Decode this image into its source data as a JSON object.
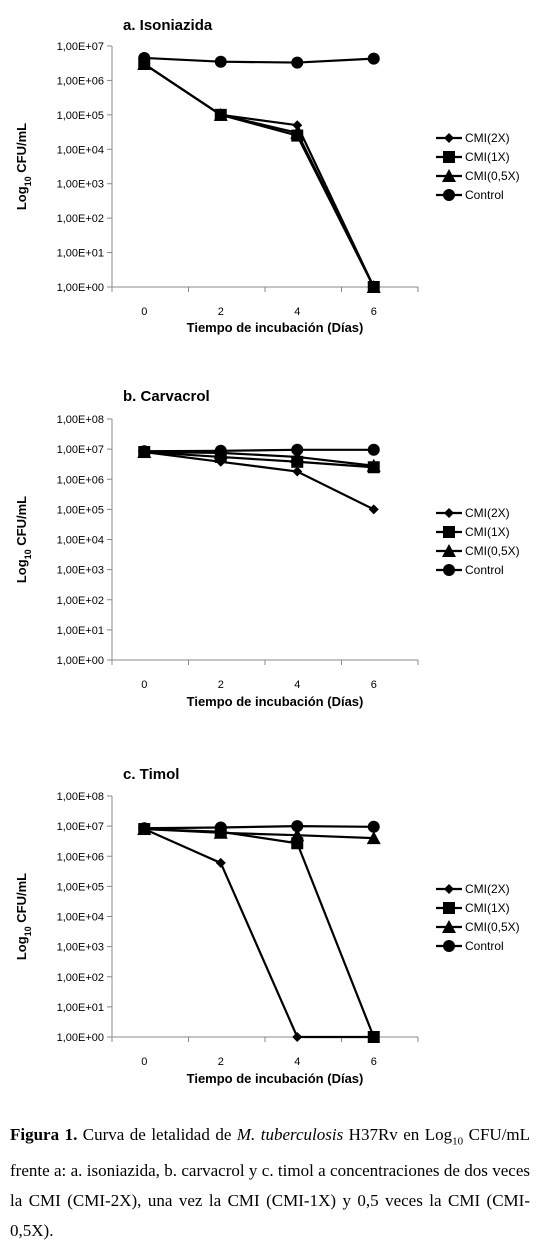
{
  "chart_data": [
    {
      "type": "line",
      "title": "a. Isoniazida",
      "xlabel": "Tiempo de incubación (Días)",
      "ylabel": "Log10 CFU/mL",
      "yscale": "log",
      "ylim": [
        1,
        10000000
      ],
      "yticks": [
        "1,00E+00",
        "1,00E+01",
        "1,00E+02",
        "1,00E+03",
        "1,00E+04",
        "1,00E+05",
        "1,00E+06",
        "1,00E+07"
      ],
      "x": [
        0,
        2,
        4,
        6
      ],
      "legend_position": "right",
      "series": [
        {
          "name": "CMI(2X)",
          "marker": "diamond",
          "values": [
            3000000,
            100000,
            50000,
            1
          ]
        },
        {
          "name": "CMI(1X)",
          "marker": "square",
          "values": [
            3000000,
            100000,
            25000,
            1
          ]
        },
        {
          "name": "CMI(0,5X)",
          "marker": "triangle",
          "values": [
            3000000,
            100000,
            30000,
            1
          ]
        },
        {
          "name": "Control",
          "marker": "circle",
          "values": [
            4500000,
            3500000,
            3300000,
            4300000
          ]
        }
      ]
    },
    {
      "type": "line",
      "title": "b. Carvacrol",
      "xlabel": "Tiempo de incubación (Días)",
      "ylabel": "Log10 CFU/mL",
      "yscale": "log",
      "ylim": [
        1,
        100000000
      ],
      "yticks": [
        "1,00E+00",
        "1,00E+01",
        "1,00E+02",
        "1,00E+03",
        "1,00E+04",
        "1,00E+05",
        "1,00E+06",
        "1,00E+07",
        "1,00E+08"
      ],
      "x": [
        0,
        2,
        4,
        6
      ],
      "legend_position": "right",
      "series": [
        {
          "name": "CMI(2X)",
          "marker": "diamond",
          "values": [
            8000000,
            3800000,
            1800000,
            100000
          ]
        },
        {
          "name": "CMI(1X)",
          "marker": "square",
          "values": [
            8000000,
            5500000,
            3800000,
            2500000
          ]
        },
        {
          "name": "CMI(0,5X)",
          "marker": "triangle",
          "values": [
            8000000,
            7500000,
            5500000,
            2800000
          ]
        },
        {
          "name": "Control",
          "marker": "circle",
          "values": [
            8500000,
            8800000,
            9500000,
            9500000
          ]
        }
      ]
    },
    {
      "type": "line",
      "title": "c. Timol",
      "xlabel": "Tiempo de incubación (Días)",
      "ylabel": "Log10 CFU/mL",
      "yscale": "log",
      "ylim": [
        1,
        100000000
      ],
      "yticks": [
        "1,00E+00",
        "1,00E+01",
        "1,00E+02",
        "1,00E+03",
        "1,00E+04",
        "1,00E+05",
        "1,00E+06",
        "1,00E+07",
        "1,00E+08"
      ],
      "x": [
        0,
        2,
        4,
        6
      ],
      "legend_position": "right",
      "series": [
        {
          "name": "CMI(2X)",
          "marker": "diamond",
          "values": [
            8000000,
            600000,
            1,
            1
          ]
        },
        {
          "name": "CMI(1X)",
          "marker": "square",
          "values": [
            8000000,
            6500000,
            2700000,
            1
          ]
        },
        {
          "name": "CMI(0,5X)",
          "marker": "triangle",
          "values": [
            8000000,
            6000000,
            5000000,
            4000000
          ]
        },
        {
          "name": "Control",
          "marker": "circle",
          "values": [
            8500000,
            9000000,
            10000000,
            9500000
          ]
        }
      ]
    }
  ],
  "caption": {
    "label": "Figura 1.",
    "text_1": "Curva de letalidad de",
    "organism": "M. tuberculosis",
    "text_2": "H37Rv en Log",
    "sub": "10",
    "text_3": "CFU/mL frente a: a. isoniazida, b. carvacrol y c. timol a concentraciones de dos veces la CMI (CMI-2X), una vez la CMI (CMI-1X) y 0,5 veces la CMI (CMI-0,5X)."
  }
}
